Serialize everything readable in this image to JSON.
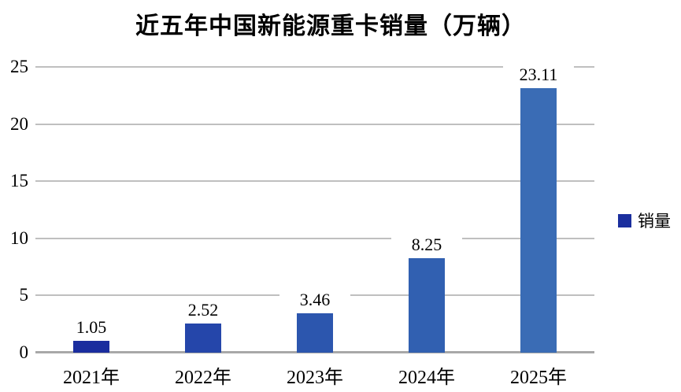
{
  "page": {
    "background": "#ffffff"
  },
  "header": {
    "title": "近五年中国新能源重卡销量（万辆）"
  },
  "legend": {
    "label": "销量",
    "swatch_color": "#1b2f9e",
    "position": "right"
  },
  "chart_data": {
    "type": "bar",
    "title": "近五年中国新能源重卡销量（万辆）",
    "categories": [
      "2021年",
      "2022年",
      "2023年",
      "2024年",
      "2025年"
    ],
    "series": [
      {
        "name": "销量",
        "values": [
          1.05,
          2.52,
          3.46,
          8.25,
          23.11
        ]
      }
    ],
    "data_labels": [
      "1.05",
      "2.52",
      "3.46",
      "8.25",
      "23.11"
    ],
    "bar_colors": [
      "#1a2d9e",
      "#2546aa",
      "#2c56ae",
      "#3160b1",
      "#3a6cb5"
    ],
    "xlabel": "",
    "ylabel": "",
    "ylim": [
      0,
      25
    ],
    "yticks": [
      0,
      5,
      10,
      15,
      20,
      25
    ],
    "grid": true,
    "gridline_color": "#bfbfbf",
    "axis_line_color": "#a8a8a8",
    "legend_position": "right",
    "legend_entries": [
      "销量"
    ]
  }
}
